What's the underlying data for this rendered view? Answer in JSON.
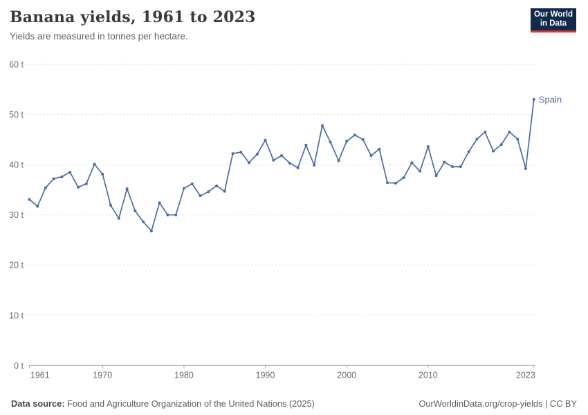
{
  "header": {
    "title": "Banana yields, 1961 to 2023",
    "subtitle": "Yields are measured in tonnes per hectare.",
    "logo": {
      "line1": "Our World",
      "line2": "in Data",
      "bg_color": "#12294e",
      "accent_color": "#dc362a"
    }
  },
  "chart_data": {
    "type": "line",
    "title": "Banana yields, 1961 to 2023",
    "subtitle": "Yields are measured in tonnes per hectare.",
    "unit": "t",
    "ylabel": "tonnes per hectare",
    "ylim": [
      0,
      60
    ],
    "yticks": [
      0,
      10,
      20,
      30,
      40,
      50,
      60
    ],
    "xticks": [
      1961,
      1970,
      1980,
      1990,
      2000,
      2010,
      2023
    ],
    "grid": "horizontal-dashed",
    "legend_position": "end-of-line",
    "axis_color": "#a8a8a8",
    "grid_color": "#dedede",
    "tick_text_color": "#6e6e6e",
    "series": [
      {
        "name": "Spain",
        "color": "#4b6ca5",
        "x": [
          1961,
          1962,
          1963,
          1964,
          1965,
          1966,
          1967,
          1968,
          1969,
          1970,
          1971,
          1972,
          1973,
          1974,
          1975,
          1976,
          1977,
          1978,
          1979,
          1980,
          1981,
          1982,
          1983,
          1984,
          1985,
          1986,
          1987,
          1988,
          1989,
          1990,
          1991,
          1992,
          1993,
          1994,
          1995,
          1996,
          1997,
          1998,
          1999,
          2000,
          2001,
          2002,
          2003,
          2004,
          2005,
          2006,
          2007,
          2008,
          2009,
          2010,
          2011,
          2012,
          2013,
          2014,
          2015,
          2016,
          2017,
          2018,
          2019,
          2020,
          2021,
          2022,
          2023
        ],
        "values": [
          33.1,
          31.7,
          35.4,
          37.2,
          37.6,
          38.5,
          35.5,
          36.2,
          40.1,
          38.1,
          31.9,
          29.3,
          35.2,
          30.8,
          28.6,
          26.8,
          32.4,
          30.0,
          30.0,
          35.3,
          36.2,
          33.8,
          34.6,
          35.8,
          34.7,
          42.2,
          42.5,
          40.4,
          42.1,
          44.9,
          40.9,
          41.8,
          40.3,
          39.4,
          43.9,
          39.9,
          47.8,
          44.5,
          40.8,
          44.7,
          45.9,
          45.0,
          41.8,
          43.1,
          36.4,
          36.3,
          37.4,
          40.4,
          38.7,
          43.6,
          37.8,
          40.5,
          39.6,
          39.6,
          42.6,
          45.1,
          46.5,
          42.7,
          44.0,
          46.5,
          45.1,
          39.2,
          53.0
        ]
      }
    ]
  },
  "footer": {
    "source_label": "Data source:",
    "source_text": " Food and Agriculture Organization of the United Nations (2025)",
    "link_text": "OurWorldinData.org/crop-yields | CC BY"
  }
}
